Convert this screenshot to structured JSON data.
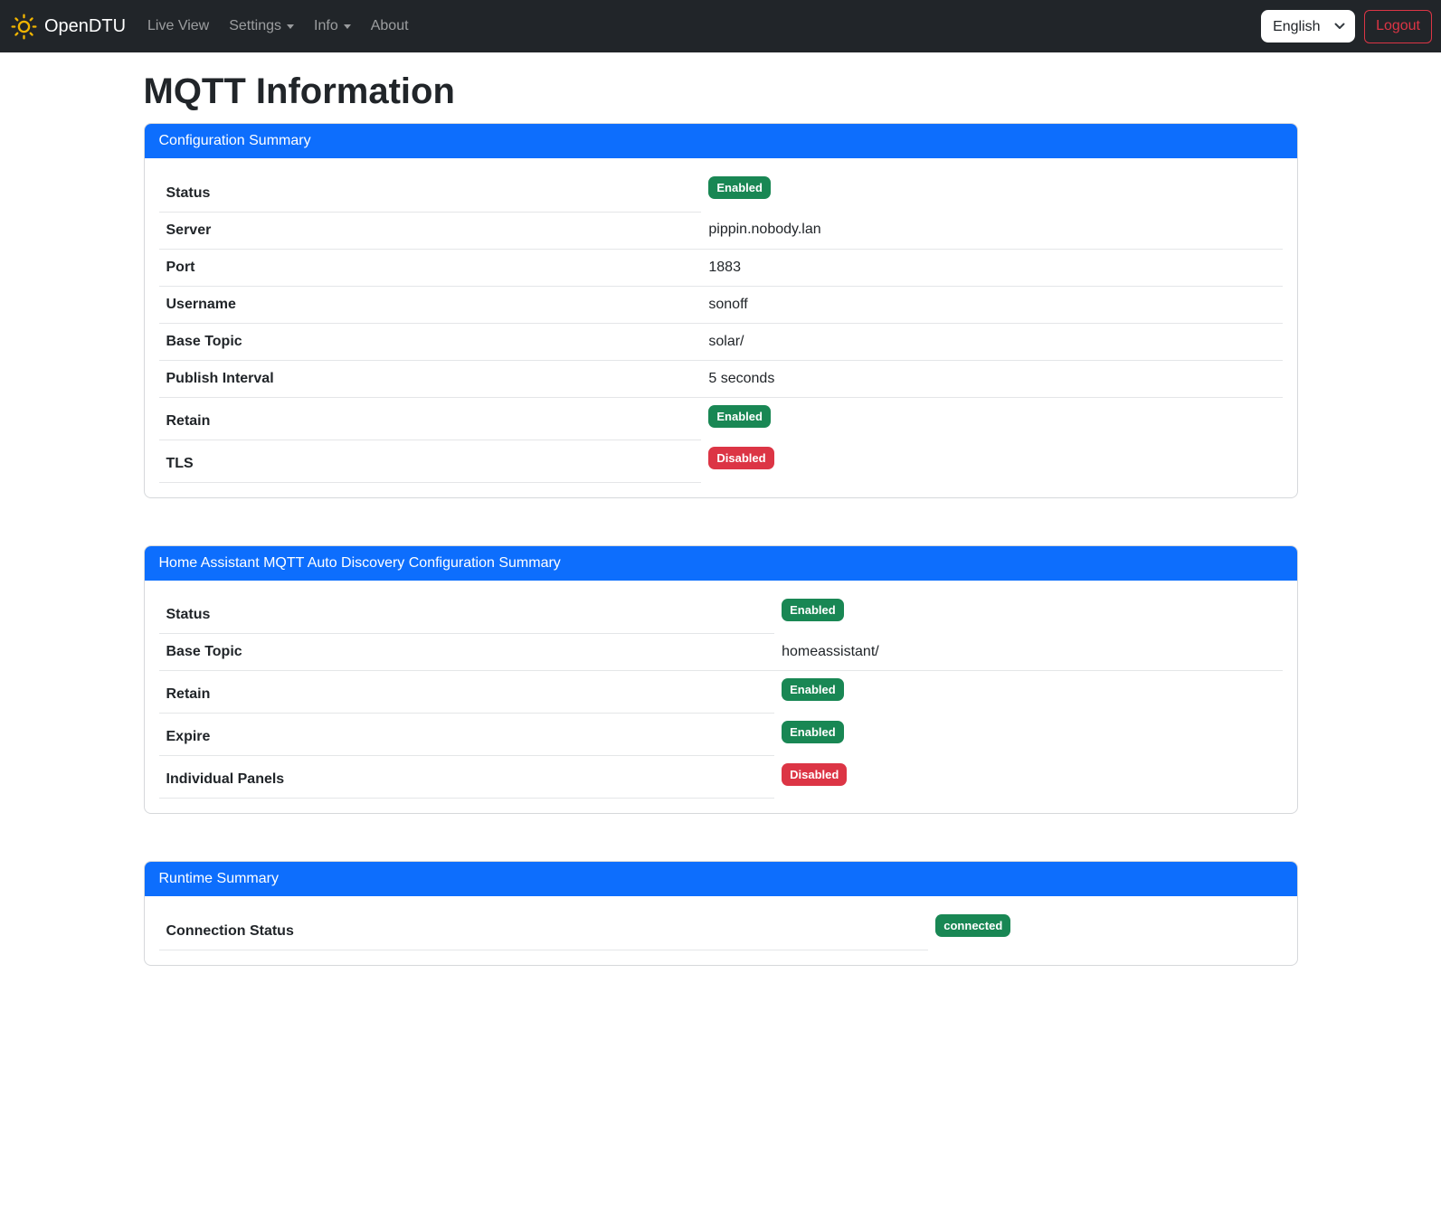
{
  "navbar": {
    "brand": "OpenDTU",
    "items": [
      {
        "label": "Live View",
        "dropdown": false
      },
      {
        "label": "Settings",
        "dropdown": true
      },
      {
        "label": "Info",
        "dropdown": true
      },
      {
        "label": "About",
        "dropdown": false
      }
    ],
    "language": {
      "selected": "English"
    },
    "logout_label": "Logout"
  },
  "page": {
    "title": "MQTT Information"
  },
  "cards": [
    {
      "title": "Configuration Summary",
      "label_col_width": "48.3%",
      "rows": [
        {
          "label": "Status",
          "type": "badge",
          "value": "Enabled",
          "variant": "success"
        },
        {
          "label": "Server",
          "type": "text",
          "value": "pippin.nobody.lan"
        },
        {
          "label": "Port",
          "type": "text",
          "value": "1883"
        },
        {
          "label": "Username",
          "type": "text",
          "value": "sonoff"
        },
        {
          "label": "Base Topic",
          "type": "text",
          "value": "solar/"
        },
        {
          "label": "Publish Interval",
          "type": "text",
          "value": "5 seconds"
        },
        {
          "label": "Retain",
          "type": "badge",
          "value": "Enabled",
          "variant": "success"
        },
        {
          "label": "TLS",
          "type": "badge",
          "value": "Disabled",
          "variant": "danger"
        }
      ]
    },
    {
      "title": "Home Assistant MQTT Auto Discovery Configuration Summary",
      "label_col_width": "54.8%",
      "rows": [
        {
          "label": "Status",
          "type": "badge",
          "value": "Enabled",
          "variant": "success"
        },
        {
          "label": "Base Topic",
          "type": "text",
          "value": "homeassistant/"
        },
        {
          "label": "Retain",
          "type": "badge",
          "value": "Enabled",
          "variant": "success"
        },
        {
          "label": "Expire",
          "type": "badge",
          "value": "Enabled",
          "variant": "success"
        },
        {
          "label": "Individual Panels",
          "type": "badge",
          "value": "Disabled",
          "variant": "danger"
        }
      ]
    },
    {
      "title": "Runtime Summary",
      "label_col_width": "68.5%",
      "rows": [
        {
          "label": "Connection Status",
          "type": "badge",
          "value": "connected",
          "variant": "success"
        }
      ]
    }
  ],
  "icons": {
    "brand": "sun-icon",
    "nav_dropdown": "chevron-down-icon",
    "language_dropdown": "chevron-down-icon"
  },
  "colors": {
    "accent": "#0d6efd",
    "success": "#198754",
    "danger": "#dc3545",
    "navbar_bg": "#212529",
    "sun": "#f0b400"
  }
}
